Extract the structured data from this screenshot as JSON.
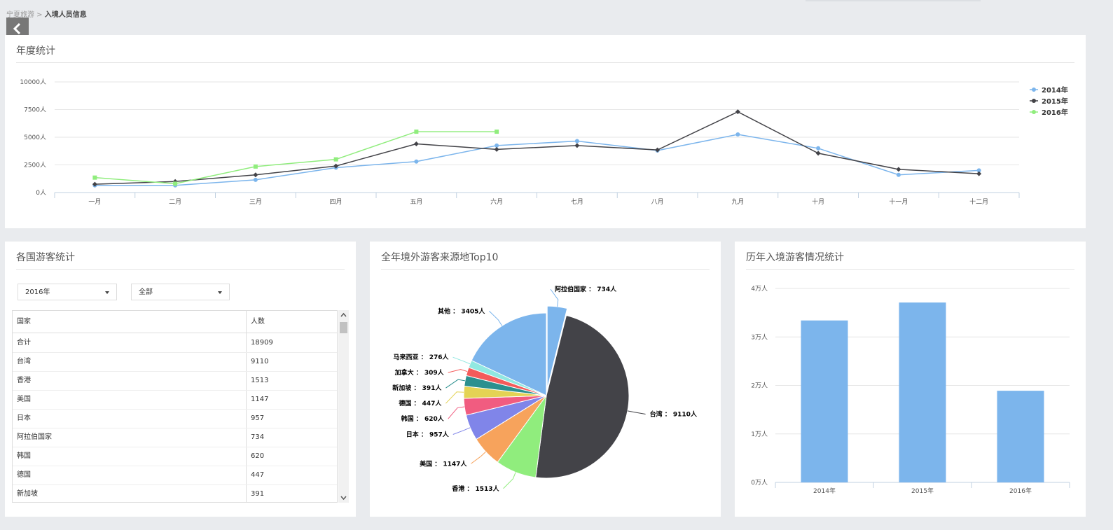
{
  "breadcrumb": [
    "宁夏旅游",
    "入境人员信息"
  ],
  "chart_data": [
    {
      "type": "line",
      "title": "年度统计",
      "categories": [
        "一月",
        "二月",
        "三月",
        "四月",
        "五月",
        "六月",
        "七月",
        "八月",
        "九月",
        "十月",
        "十一月",
        "十二月"
      ],
      "series": [
        {
          "name": "2014年",
          "color": "#7cb5ec",
          "marker": "circle",
          "values": [
            650,
            650,
            1150,
            2250,
            2800,
            4250,
            4650,
            3800,
            5250,
            4000,
            1600,
            2000
          ]
        },
        {
          "name": "2015年",
          "color": "#434348",
          "marker": "diamond",
          "values": [
            750,
            1000,
            1600,
            2400,
            4400,
            3900,
            4250,
            3850,
            7300,
            3550,
            2100,
            1700
          ]
        },
        {
          "name": "2016年",
          "color": "#90ed7d",
          "marker": "square",
          "values": [
            1350,
            800,
            2350,
            3000,
            5500,
            5500,
            null,
            null,
            null,
            null,
            null,
            null
          ]
        }
      ],
      "ylim": [
        0,
        10000
      ],
      "yticks": [
        {
          "value": 0,
          "label": "0人"
        },
        {
          "value": 2500,
          "label": "2500人"
        },
        {
          "value": 5000,
          "label": "5000人"
        },
        {
          "value": 7500,
          "label": "7500人"
        },
        {
          "value": 10000,
          "label": "10000人"
        }
      ],
      "grid": true,
      "legend": "right"
    },
    {
      "type": "pie",
      "title": "全年境外游客来源地Top10",
      "categories": [
        "阿拉伯国家",
        "台湾",
        "香港",
        "美国",
        "日本",
        "韩国",
        "德国",
        "新加坡",
        "加拿大",
        "马来西亚",
        "其他"
      ],
      "values": [
        734,
        9110,
        1513,
        1147,
        957,
        620,
        447,
        391,
        309,
        276,
        3405
      ],
      "value_labels": [
        "734人",
        "9110人",
        "1513人",
        "1147人",
        "957人",
        "620人",
        "447人",
        "391人",
        "309人",
        "276人",
        "3405人"
      ],
      "label_separator": " ： ",
      "colors": [
        "#7cb5ec",
        "#434348",
        "#90ed7d",
        "#f7a35c",
        "#8085e9",
        "#f15c80",
        "#e4d354",
        "#2b908f",
        "#f45b5b",
        "#91e8e1",
        "#7cb5ec"
      ],
      "sliced": 0
    },
    {
      "type": "bar",
      "title": "历年入境游客情况统计",
      "categories": [
        "2014年",
        "2015年",
        "2016年"
      ],
      "values": [
        3.34,
        3.71,
        1.89
      ],
      "color": "#7cb5ec",
      "ylim": [
        0,
        4
      ],
      "yticks": [
        {
          "value": 0,
          "label": "0万人"
        },
        {
          "value": 1,
          "label": "1万人"
        },
        {
          "value": 2,
          "label": "2万人"
        },
        {
          "value": 3,
          "label": "3万人"
        },
        {
          "value": 4,
          "label": "4万人"
        }
      ],
      "grid": true
    }
  ],
  "country_panel": {
    "title": "各国游客统计",
    "filters": [
      "2016年",
      "全部"
    ],
    "table": {
      "columns": [
        "国家",
        "人数"
      ],
      "rows": [
        [
          "合计",
          18909
        ],
        [
          "台湾",
          9110
        ],
        [
          "香港",
          1513
        ],
        [
          "美国",
          1147
        ],
        [
          "日本",
          957
        ],
        [
          "阿拉伯国家",
          734
        ],
        [
          "韩国",
          620
        ],
        [
          "德国",
          447
        ],
        [
          "新加坡",
          391
        ]
      ]
    }
  }
}
